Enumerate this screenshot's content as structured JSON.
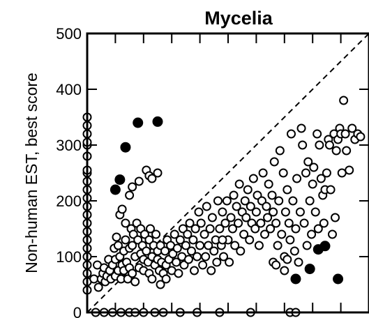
{
  "chart_data": {
    "type": "scatter",
    "title": "Mycelia",
    "xlabel": "",
    "ylabel": "Non-human EST, best score",
    "xlim": [
      0,
      500
    ],
    "ylim": [
      0,
      500
    ],
    "y_ticks": [
      0,
      100,
      200,
      300,
      400,
      500
    ],
    "y_tick_labels": [
      "0",
      "100",
      "200",
      "300",
      "400",
      "500"
    ],
    "x_ticks": [
      0,
      50,
      100,
      150,
      200,
      250,
      300,
      350,
      400,
      450,
      500
    ],
    "diagonal_reference_line": "y = x, dashed",
    "grid": false,
    "legend": "none",
    "colors": {
      "open": "#000000",
      "filled": "#000000",
      "background": "#ffffff"
    },
    "series": [
      {
        "marker": "open-circle",
        "points": [
          [
            0,
            40
          ],
          [
            0,
            55
          ],
          [
            0,
            70
          ],
          [
            0,
            85
          ],
          [
            0,
            100
          ],
          [
            0,
            115
          ],
          [
            0,
            130
          ],
          [
            0,
            145
          ],
          [
            0,
            160
          ],
          [
            0,
            175
          ],
          [
            0,
            190
          ],
          [
            0,
            205
          ],
          [
            0,
            220
          ],
          [
            0,
            235
          ],
          [
            0,
            250
          ],
          [
            0,
            255
          ],
          [
            0,
            280
          ],
          [
            0,
            300
          ],
          [
            0,
            305
          ],
          [
            0,
            320
          ],
          [
            0,
            335
          ],
          [
            0,
            350
          ],
          [
            15,
            0
          ],
          [
            30,
            0
          ],
          [
            45,
            0
          ],
          [
            60,
            0
          ],
          [
            75,
            0
          ],
          [
            85,
            0
          ],
          [
            100,
            0
          ],
          [
            120,
            0
          ],
          [
            135,
            0
          ],
          [
            165,
            0
          ],
          [
            195,
            0
          ],
          [
            235,
            0
          ],
          [
            290,
            0
          ],
          [
            360,
            0
          ],
          [
            370,
            0
          ],
          [
            12,
            60
          ],
          [
            18,
            85
          ],
          [
            20,
            45
          ],
          [
            25,
            60
          ],
          [
            28,
            70
          ],
          [
            30,
            80
          ],
          [
            32,
            55
          ],
          [
            35,
            65
          ],
          [
            38,
            95
          ],
          [
            40,
            75
          ],
          [
            42,
            60
          ],
          [
            45,
            85
          ],
          [
            48,
            115
          ],
          [
            50,
            95
          ],
          [
            50,
            65
          ],
          [
            52,
            135
          ],
          [
            55,
            120
          ],
          [
            55,
            75
          ],
          [
            58,
            100
          ],
          [
            60,
            60
          ],
          [
            62,
            85
          ],
          [
            65,
            110
          ],
          [
            65,
            75
          ],
          [
            68,
            130
          ],
          [
            70,
            90
          ],
          [
            72,
            60
          ],
          [
            75,
            115
          ],
          [
            75,
            80
          ],
          [
            78,
            150
          ],
          [
            80,
            120
          ],
          [
            80,
            70
          ],
          [
            82,
            140
          ],
          [
            85,
            100
          ],
          [
            85,
            55
          ],
          [
            88,
            160
          ],
          [
            90,
            130
          ],
          [
            92,
            80
          ],
          [
            95,
            150
          ],
          [
            95,
            105
          ],
          [
            98,
            120
          ],
          [
            100,
            95
          ],
          [
            100,
            75
          ],
          [
            102,
            140
          ],
          [
            105,
            110
          ],
          [
            108,
            90
          ],
          [
            110,
            130
          ],
          [
            110,
            70
          ],
          [
            112,
            150
          ],
          [
            115,
            100
          ],
          [
            115,
            60
          ],
          [
            118,
            120
          ],
          [
            120,
            85
          ],
          [
            122,
            140
          ],
          [
            125,
            110
          ],
          [
            125,
            95
          ],
          [
            128,
            75
          ],
          [
            130,
            120
          ],
          [
            130,
            50
          ],
          [
            132,
            90
          ],
          [
            135,
            70
          ],
          [
            138,
            110
          ],
          [
            140,
            85
          ],
          [
            140,
            60
          ],
          [
            142,
            130
          ],
          [
            145,
            95
          ],
          [
            148,
            120
          ],
          [
            150,
            75
          ],
          [
            152,
            105
          ],
          [
            155,
            140
          ],
          [
            158,
            90
          ],
          [
            160,
            115
          ],
          [
            162,
            70
          ],
          [
            165,
            130
          ],
          [
            168,
            100
          ],
          [
            170,
            150
          ],
          [
            172,
            85
          ],
          [
            175,
            120
          ],
          [
            178,
            140
          ],
          [
            180,
            95
          ],
          [
            182,
            160
          ],
          [
            185,
            110
          ],
          [
            188,
            130
          ],
          [
            190,
            75
          ],
          [
            192,
            150
          ],
          [
            195,
            100
          ],
          [
            198,
            180
          ],
          [
            200,
            120
          ],
          [
            202,
            160
          ],
          [
            205,
            85
          ],
          [
            208,
            140
          ],
          [
            210,
            100
          ],
          [
            212,
            190
          ],
          [
            215,
            120
          ],
          [
            218,
            150
          ],
          [
            220,
            75
          ],
          [
            222,
            170
          ],
          [
            225,
            110
          ],
          [
            228,
            130
          ],
          [
            230,
            90
          ],
          [
            232,
            200
          ],
          [
            235,
            150
          ],
          [
            238,
            120
          ],
          [
            240,
            180
          ],
          [
            242,
            100
          ],
          [
            245,
            160
          ],
          [
            248,
            200
          ],
          [
            250,
            130
          ],
          [
            252,
            90
          ],
          [
            255,
            170
          ],
          [
            258,
            150
          ],
          [
            260,
            210
          ],
          [
            262,
            120
          ],
          [
            265,
            190
          ],
          [
            268,
            160
          ],
          [
            270,
            230
          ],
          [
            272,
            110
          ],
          [
            275,
            180
          ],
          [
            278,
            140
          ],
          [
            280,
            200
          ],
          [
            282,
            170
          ],
          [
            285,
            220
          ],
          [
            288,
            130
          ],
          [
            290,
            190
          ],
          [
            292,
            160
          ],
          [
            295,
            240
          ],
          [
            298,
            150
          ],
          [
            300,
            180
          ],
          [
            302,
            210
          ],
          [
            305,
            120
          ],
          [
            308,
            160
          ],
          [
            310,
            200
          ],
          [
            312,
            250
          ],
          [
            315,
            140
          ],
          [
            318,
            190
          ],
          [
            320,
            170
          ],
          [
            322,
            230
          ],
          [
            325,
            150
          ],
          [
            328,
            210
          ],
          [
            330,
            180
          ],
          [
            332,
            270
          ],
          [
            335,
            160
          ],
          [
            338,
            120
          ],
          [
            340,
            200
          ],
          [
            342,
            290
          ],
          [
            345,
            140
          ],
          [
            348,
            250
          ],
          [
            350,
            100
          ],
          [
            352,
            180
          ],
          [
            355,
            220
          ],
          [
            358,
            160
          ],
          [
            360,
            130
          ],
          [
            362,
            320
          ],
          [
            365,
            200
          ],
          [
            368,
            110
          ],
          [
            370,
            150
          ],
          [
            372,
            240
          ],
          [
            375,
            90
          ],
          [
            378,
            180
          ],
          [
            380,
            330
          ],
          [
            382,
            300
          ],
          [
            385,
            160
          ],
          [
            388,
            250
          ],
          [
            390,
            120
          ],
          [
            392,
            270
          ],
          [
            395,
            200
          ],
          [
            398,
            140
          ],
          [
            400,
            230
          ],
          [
            402,
            260
          ],
          [
            405,
            180
          ],
          [
            408,
            320
          ],
          [
            410,
            150
          ],
          [
            412,
            300
          ],
          [
            415,
            240
          ],
          [
            418,
            210
          ],
          [
            420,
            160
          ],
          [
            422,
            220
          ],
          [
            425,
            250
          ],
          [
            428,
            310
          ],
          [
            430,
            300
          ],
          [
            432,
            220
          ],
          [
            435,
            140
          ],
          [
            438,
            320
          ],
          [
            440,
            170
          ],
          [
            442,
            290
          ],
          [
            445,
            310
          ],
          [
            448,
            330
          ],
          [
            450,
            320
          ],
          [
            452,
            250
          ],
          [
            455,
            380
          ],
          [
            458,
            320
          ],
          [
            460,
            290
          ],
          [
            465,
            255
          ],
          [
            470,
            330
          ],
          [
            475,
            310
          ],
          [
            480,
            320
          ],
          [
            485,
            315
          ],
          [
            58,
            175
          ],
          [
            62,
            185
          ],
          [
            68,
            160
          ],
          [
            75,
            210
          ],
          [
            80,
            225
          ],
          [
            92,
            235
          ],
          [
            105,
            255
          ],
          [
            110,
            245
          ],
          [
            115,
            240
          ],
          [
            125,
            250
          ],
          [
            240,
            130
          ],
          [
            330,
            90
          ],
          [
            335,
            85
          ],
          [
            350,
            75
          ],
          [
            355,
            95
          ]
        ]
      },
      {
        "marker": "filled-circle",
        "points": [
          [
            50,
            220
          ],
          [
            58,
            238
          ],
          [
            68,
            296
          ],
          [
            90,
            340
          ],
          [
            125,
            342
          ],
          [
            370,
            60
          ],
          [
            395,
            78
          ],
          [
            410,
            113
          ],
          [
            422,
            119
          ],
          [
            445,
            60
          ]
        ]
      }
    ]
  }
}
